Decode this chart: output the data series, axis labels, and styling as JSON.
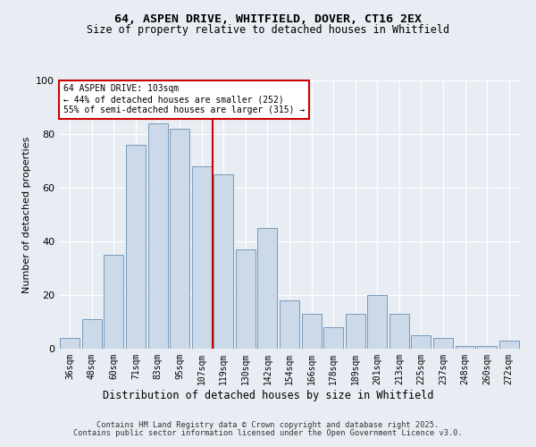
{
  "title1": "64, ASPEN DRIVE, WHITFIELD, DOVER, CT16 2EX",
  "title2": "Size of property relative to detached houses in Whitfield",
  "xlabel": "Distribution of detached houses by size in Whitfield",
  "ylabel": "Number of detached properties",
  "categories": [
    "36sqm",
    "48sqm",
    "60sqm",
    "71sqm",
    "83sqm",
    "95sqm",
    "107sqm",
    "119sqm",
    "130sqm",
    "142sqm",
    "154sqm",
    "166sqm",
    "178sqm",
    "189sqm",
    "201sqm",
    "213sqm",
    "225sqm",
    "237sqm",
    "248sqm",
    "260sqm",
    "272sqm"
  ],
  "values": [
    4,
    11,
    35,
    76,
    84,
    82,
    68,
    65,
    37,
    45,
    18,
    13,
    8,
    13,
    20,
    13,
    5,
    4,
    1,
    1,
    3
  ],
  "bar_color": "#ccd9e8",
  "bar_edge_color": "#7799bb",
  "vline_pos": 6.5,
  "annotation_line1": "64 ASPEN DRIVE: 103sqm",
  "annotation_line2": "← 44% of detached houses are smaller (252)",
  "annotation_line3": "55% of semi-detached houses are larger (315) →",
  "annotation_box_color": "#ffffff",
  "annotation_box_edge": "#cc0000",
  "vline_color": "#cc0000",
  "ylim": [
    0,
    100
  ],
  "yticks": [
    0,
    20,
    40,
    60,
    80,
    100
  ],
  "bg_color": "#e8edf4",
  "footnote1": "Contains HM Land Registry data © Crown copyright and database right 2025.",
  "footnote2": "Contains public sector information licensed under the Open Government Licence v3.0."
}
